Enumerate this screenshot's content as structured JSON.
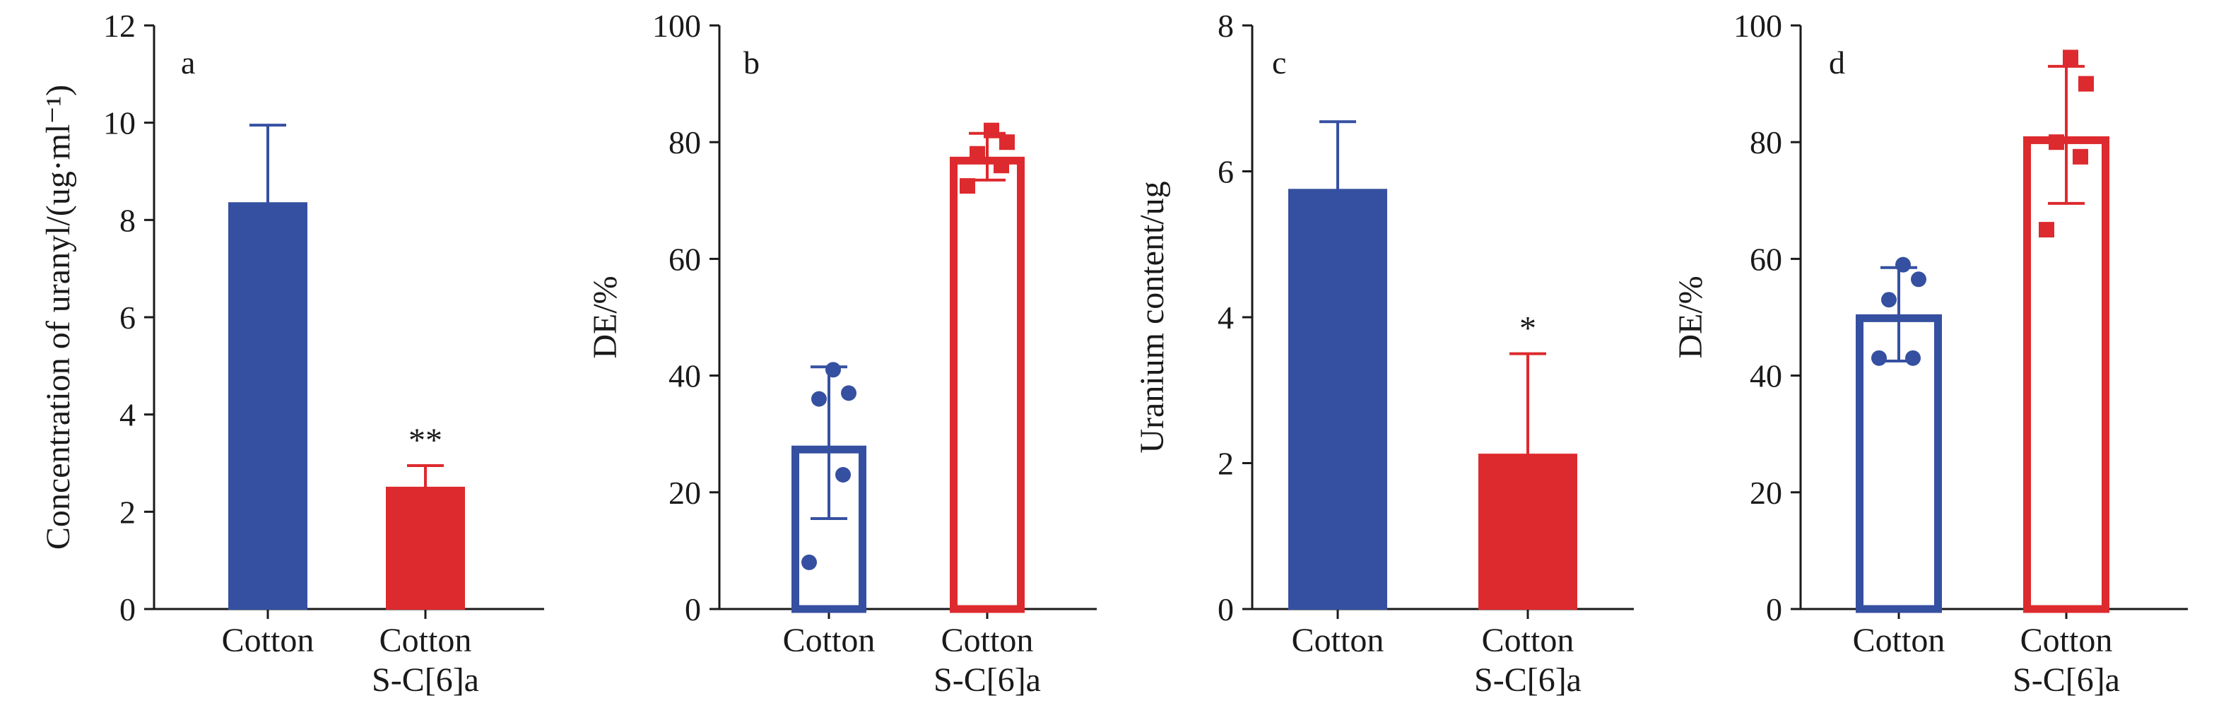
{
  "chart_data": [
    {
      "panel": "a",
      "type": "bar",
      "style": "filled",
      "ylabel": "Concentration of uranyl/(ug·ml⁻¹)",
      "ylim": [
        0,
        12
      ],
      "yticks": [
        "0",
        "2",
        "4",
        "6",
        "8",
        "10",
        "12"
      ],
      "categories": [
        [
          "Cotton"
        ],
        [
          "Cotton",
          "S-C[6]a"
        ]
      ],
      "values": [
        8.35,
        2.5
      ],
      "error_upper": [
        9.95,
        2.95
      ],
      "colors": [
        "#3550a0",
        "#dd2a2e"
      ],
      "significance": [
        "",
        "**"
      ],
      "points": [
        [],
        []
      ]
    },
    {
      "panel": "b",
      "type": "bar",
      "style": "outline",
      "ylabel": "DE/%",
      "ylim": [
        0,
        100
      ],
      "yticks": [
        "0",
        "20",
        "40",
        "60",
        "80",
        "100"
      ],
      "categories": [
        [
          "Cotton"
        ],
        [
          "Cotton",
          "S-C[6]a"
        ]
      ],
      "values": [
        28,
        77.5
      ],
      "error_upper": [
        41.5,
        81.5
      ],
      "error_lower": [
        15.5,
        73.5
      ],
      "colors": [
        "#3550a0",
        "#dd2a2e"
      ],
      "significance": [
        "",
        ""
      ],
      "points": [
        [
          8,
          23,
          36,
          37,
          41
        ],
        [
          72.5,
          76,
          78,
          80,
          82
        ]
      ]
    },
    {
      "panel": "c",
      "type": "bar",
      "style": "filled",
      "ylabel": "Uranium content/ug",
      "ylim": [
        0,
        8
      ],
      "yticks": [
        "0",
        "2",
        "4",
        "6",
        "8"
      ],
      "categories": [
        [
          "Cotton"
        ],
        [
          "Cotton",
          "S-C[6]a"
        ]
      ],
      "values": [
        5.75,
        2.12
      ],
      "error_upper": [
        6.68,
        3.5
      ],
      "colors": [
        "#3550a0",
        "#dd2a2e"
      ],
      "significance": [
        "",
        "*"
      ],
      "points": [
        [],
        []
      ]
    },
    {
      "panel": "d",
      "type": "bar",
      "style": "outline",
      "ylabel": "DE/%",
      "ylim": [
        0,
        100
      ],
      "yticks": [
        "0",
        "20",
        "40",
        "60",
        "80",
        "100"
      ],
      "categories": [
        [
          "Cotton"
        ],
        [
          "Cotton",
          "S-C[6]a"
        ]
      ],
      "values": [
        50.5,
        81
      ],
      "error_upper": [
        58.5,
        93
      ],
      "error_lower": [
        42.5,
        69.5
      ],
      "colors": [
        "#3550a0",
        "#dd2a2e"
      ],
      "significance": [
        "",
        ""
      ],
      "points": [
        [
          43,
          43,
          53,
          56.5,
          59
        ],
        [
          65,
          77.5,
          80,
          90,
          94.5
        ]
      ]
    }
  ]
}
